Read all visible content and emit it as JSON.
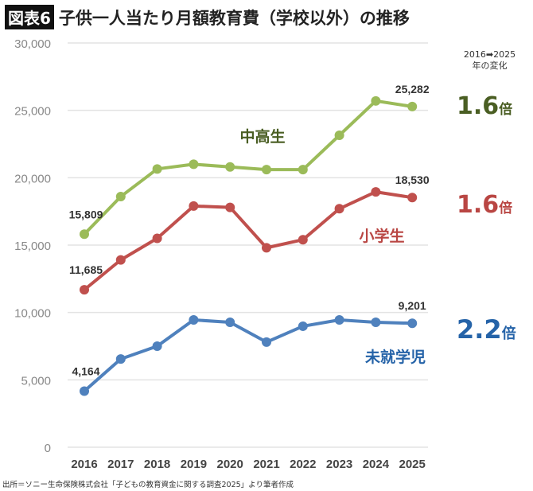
{
  "title_badge": "図表6",
  "title": "子供一人当たり月額教育費（学校以外）の推移",
  "source": "出所＝ソニー生命保険株式会社「子どもの教育資金に関する調査2025」より筆者作成",
  "change_header": {
    "line1": "2016➡2025",
    "line2": "年の変化"
  },
  "changes": [
    {
      "series": "中高生",
      "value": "1.6",
      "unit": "倍",
      "color": "#4a5e23"
    },
    {
      "series": "小学生",
      "value": "1.6",
      "unit": "倍",
      "color": "#b94643"
    },
    {
      "series": "未就学児",
      "value": "2.2",
      "unit": "倍",
      "color": "#2563a8"
    }
  ],
  "chart_data": {
    "type": "line",
    "title": "子供一人当たり月額教育費（学校以外）の推移",
    "x": [
      2016,
      2017,
      2018,
      2019,
      2020,
      2021,
      2022,
      2023,
      2024,
      2025
    ],
    "ylim": [
      0,
      30000
    ],
    "yticks": [
      0,
      5000,
      10000,
      15000,
      20000,
      25000,
      30000
    ],
    "ytick_labels": [
      "0",
      "5,000",
      "10,000",
      "15,000",
      "20,000",
      "25,000",
      "30,000"
    ],
    "grid": true,
    "series": [
      {
        "name": "中高生",
        "color": "#9bbb59",
        "values": [
          15809,
          18600,
          20650,
          21000,
          20800,
          20600,
          20600,
          23150,
          25700,
          25282
        ],
        "labels": {
          "0": "15,809",
          "9": "25,282"
        }
      },
      {
        "name": "小学生",
        "color": "#c0504d",
        "values": [
          11685,
          13900,
          15500,
          17900,
          17800,
          14800,
          15400,
          17700,
          18950,
          18530
        ],
        "labels": {
          "0": "11,685",
          "9": "18,530"
        }
      },
      {
        "name": "未就学児",
        "color": "#4f81bd",
        "values": [
          4164,
          6550,
          7500,
          9450,
          9270,
          7800,
          8980,
          9450,
          9270,
          9201
        ],
        "labels": {
          "0": "4,164",
          "9": "9,201"
        }
      }
    ]
  }
}
